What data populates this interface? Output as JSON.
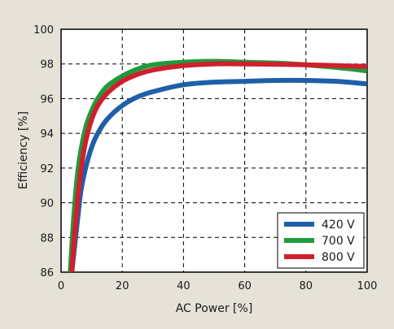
{
  "chart_data": {
    "type": "line",
    "xlabel": "AC Power [%]",
    "ylabel": "Efficiency [%]",
    "xlim": [
      0,
      100
    ],
    "ylim": [
      86,
      100
    ],
    "x_ticks": [
      0,
      20,
      40,
      60,
      80,
      100
    ],
    "y_ticks": [
      86,
      88,
      90,
      92,
      94,
      96,
      98,
      100
    ],
    "grid": "dashed",
    "legend_position": "bottom-right",
    "series": [
      {
        "name": "420 V",
        "color": "#1f5fa8",
        "x": [
          3.5,
          4.5,
          5.5,
          6.5,
          8,
          10,
          12,
          15,
          20,
          25,
          30,
          40,
          50,
          60,
          70,
          80,
          90,
          100
        ],
        "y": [
          86,
          87.6,
          89.2,
          90.7,
          92.0,
          93.2,
          94.0,
          94.8,
          95.6,
          96.1,
          96.4,
          96.8,
          96.95,
          97.0,
          97.05,
          97.05,
          97.0,
          96.85
        ]
      },
      {
        "name": "700 V",
        "color": "#1e9b3a",
        "x": [
          3,
          4,
          5,
          6,
          8,
          10,
          12,
          15,
          20,
          25,
          30,
          40,
          50,
          60,
          70,
          80,
          90,
          100
        ],
        "y": [
          86,
          88.8,
          91.0,
          92.5,
          94.3,
          95.3,
          96.0,
          96.7,
          97.3,
          97.7,
          97.95,
          98.1,
          98.15,
          98.1,
          98.05,
          97.95,
          97.8,
          97.6
        ]
      },
      {
        "name": "800 V",
        "color": "#d01f2e",
        "x": [
          3.5,
          4.5,
          5.5,
          6.5,
          8,
          10,
          12,
          15,
          20,
          25,
          30,
          40,
          50,
          60,
          70,
          80,
          90,
          100
        ],
        "y": [
          86,
          88.3,
          90.3,
          91.9,
          93.5,
          94.8,
          95.6,
          96.3,
          97.0,
          97.4,
          97.65,
          97.9,
          98.0,
          98.0,
          97.98,
          97.95,
          97.9,
          97.85
        ]
      }
    ]
  }
}
